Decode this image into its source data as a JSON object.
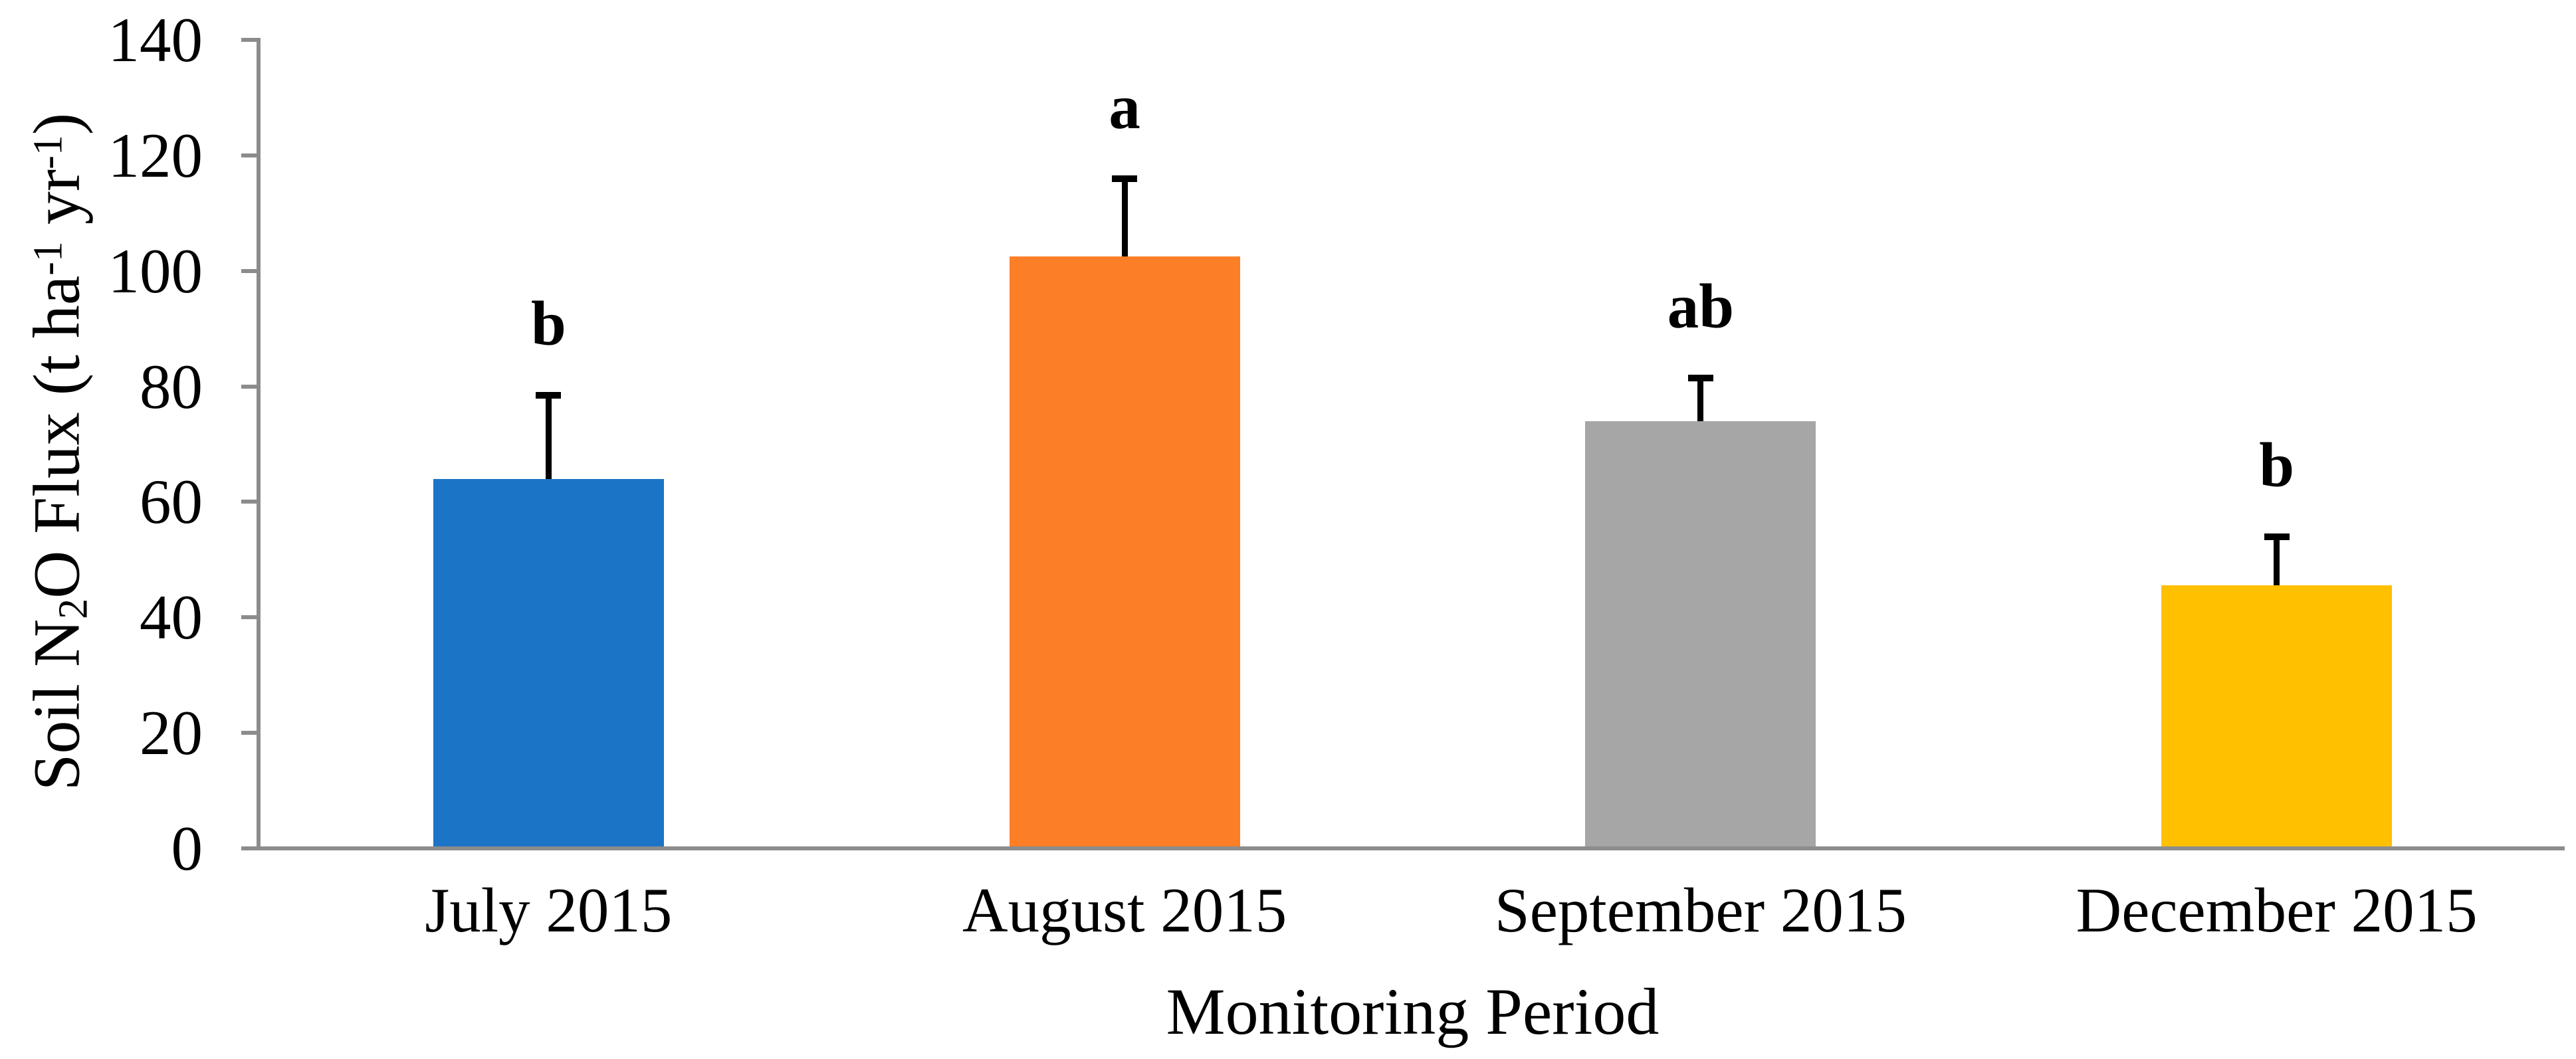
{
  "figure": {
    "background": "#FFFFFF"
  },
  "chart_data": {
    "type": "bar",
    "title": "",
    "xlabel": "Monitoring Period",
    "ylabel": "Soil N2O Flux (t ha-1 yr-1)",
    "ylabel_parts": [
      {
        "text": "Soil N",
        "script": "normal"
      },
      {
        "text": "2",
        "script": "sub"
      },
      {
        "text": "O Flux (t ha",
        "script": "normal"
      },
      {
        "text": "-1",
        "script": "sup"
      },
      {
        "text": " yr",
        "script": "normal"
      },
      {
        "text": "-1",
        "script": "sup"
      },
      {
        "text": ")",
        "script": "normal"
      }
    ],
    "categories": [
      "July 2015",
      "August 2015",
      "September 2015",
      "December 2015"
    ],
    "values": [
      64,
      102.5,
      74,
      45.5
    ],
    "errors_upper": [
      15,
      14,
      8,
      9
    ],
    "sig_letters": [
      "b",
      "a",
      "ab",
      "b"
    ],
    "bar_colors": [
      "#1B74C6",
      "#FC7E26",
      "#A6A6A6",
      "#FFC000"
    ],
    "axis_color": "#8C8C8C",
    "text_color": "#000000",
    "error_bar_color": "#000000",
    "ylim": [
      0,
      140
    ],
    "yticks": [
      0,
      20,
      40,
      60,
      80,
      100,
      120,
      140
    ],
    "grid": false,
    "legend": "none",
    "bar_gap_ratio": 1.5
  }
}
